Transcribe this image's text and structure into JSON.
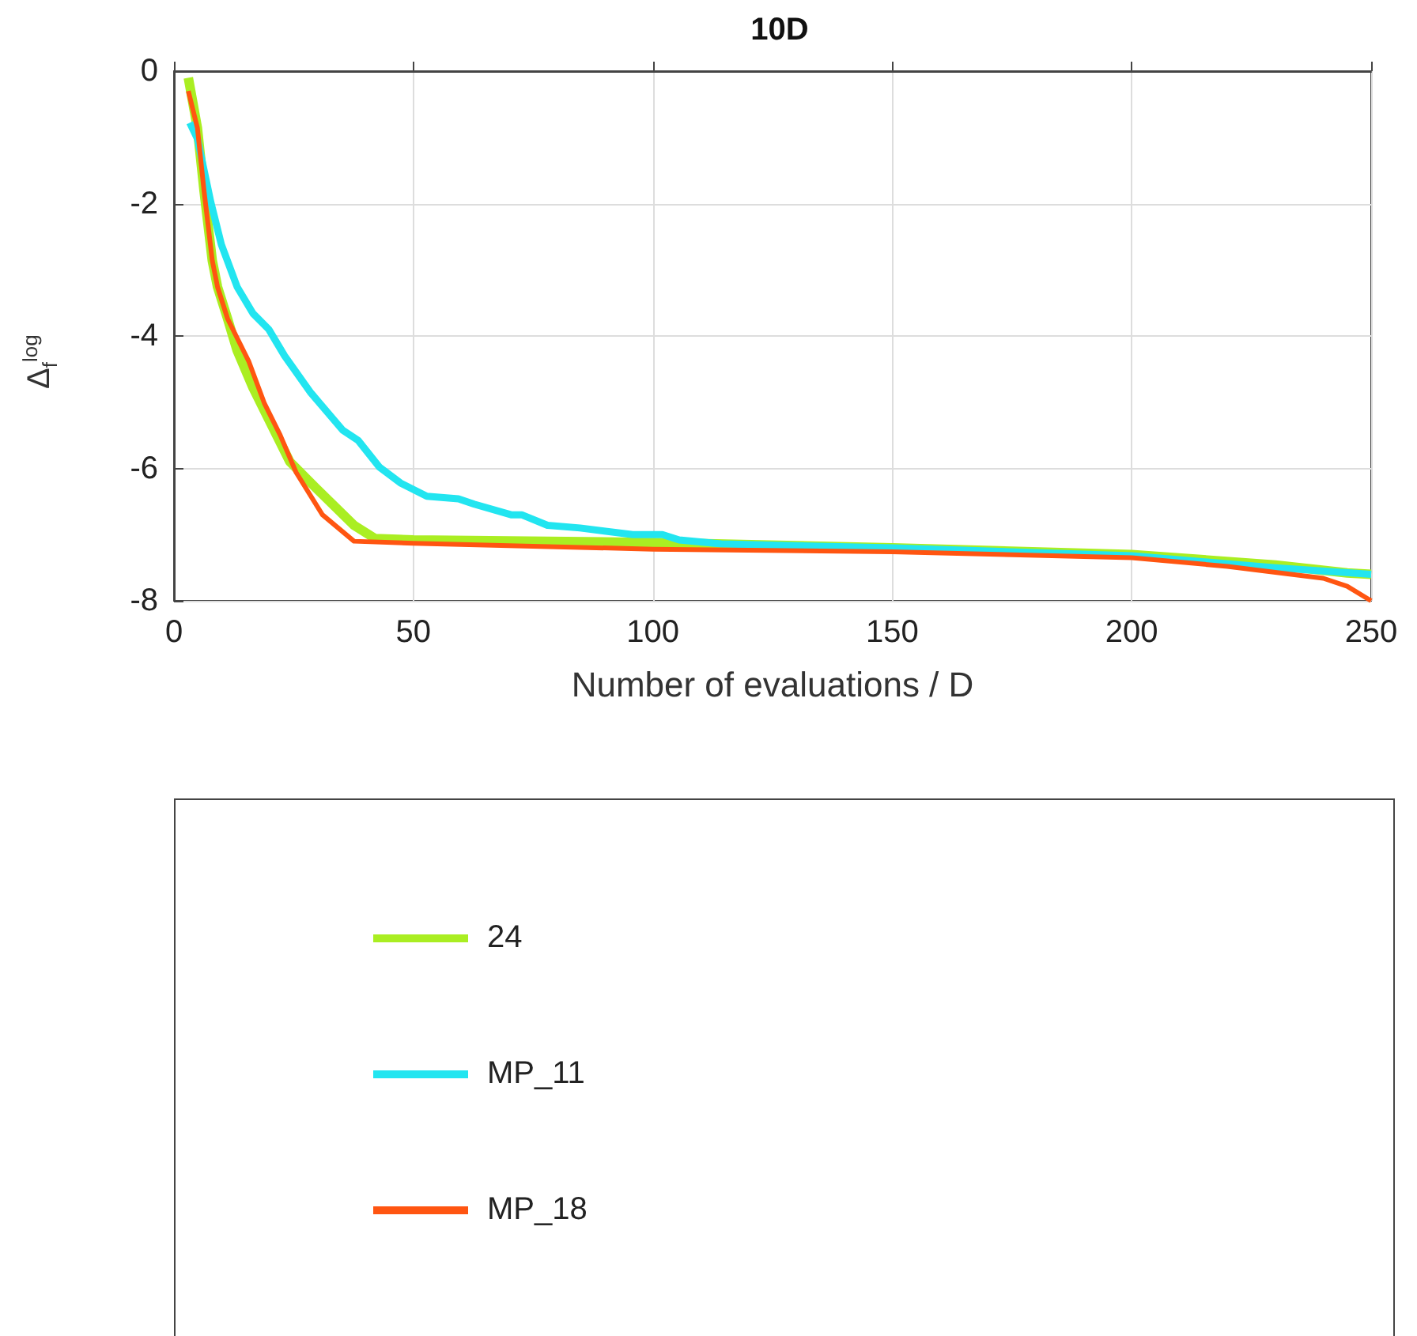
{
  "chart_data": {
    "type": "line",
    "title": "10D",
    "xlabel": "Number of evaluations / D",
    "ylabel": "Δ$_{f}$$^{log}$",
    "xlim": [
      0,
      250
    ],
    "xticks": [
      0,
      50,
      100,
      150,
      200,
      250
    ],
    "ylim": [
      -8,
      0
    ],
    "yticks": [
      -8,
      -6,
      -4,
      -2,
      0
    ],
    "grid": true,
    "legend": "bottom",
    "marker": "none",
    "line_style": "solid",
    "series": [
      {
        "name": "24",
        "color": "#aaee22",
        "x": [
          3,
          4.9,
          6.3,
          8,
          9.1,
          11.2,
          13.2,
          16.5,
          19.8,
          24.2,
          29.7,
          37.6,
          42,
          50,
          100,
          150,
          200,
          230,
          245,
          250
        ],
        "values": [
          -0.1,
          -0.86,
          -1.82,
          -2.86,
          -3.26,
          -3.74,
          -4.22,
          -4.78,
          -5.26,
          -5.9,
          -6.3,
          -6.86,
          -7.06,
          -7.08,
          -7.12,
          -7.2,
          -7.3,
          -7.46,
          -7.58,
          -7.6
        ]
      },
      {
        "name": "MP_11",
        "color": "#22e5f0",
        "x": [
          3.3,
          4.9,
          7.7,
          9.9,
          13.2,
          16.5,
          19.8,
          23.1,
          28.6,
          35.2,
          38.5,
          42.9,
          47.3,
          52.8,
          59.4,
          62.7,
          70.4,
          72.6,
          78,
          84.8,
          95.8,
          102,
          105.5,
          114.3,
          150,
          200,
          230,
          250
        ],
        "values": [
          -0.78,
          -1.02,
          -1.98,
          -2.62,
          -3.26,
          -3.66,
          -3.9,
          -4.3,
          -4.86,
          -5.42,
          -5.58,
          -5.98,
          -6.22,
          -6.42,
          -6.46,
          -6.54,
          -6.7,
          -6.7,
          -6.86,
          -6.9,
          -7.0,
          -7.0,
          -7.08,
          -7.14,
          -7.2,
          -7.32,
          -7.5,
          -7.6
        ]
      },
      {
        "name": "MP_18",
        "color": "#ff5511",
        "x": [
          3,
          4.9,
          6.3,
          8,
          9.1,
          11.2,
          15.6,
          18.9,
          22.2,
          25.5,
          31,
          37.6,
          50,
          100,
          150,
          200,
          220,
          240,
          245,
          250
        ],
        "values": [
          -0.3,
          -0.86,
          -1.82,
          -2.86,
          -3.26,
          -3.74,
          -4.38,
          -5.02,
          -5.5,
          -6.06,
          -6.7,
          -7.1,
          -7.13,
          -7.22,
          -7.26,
          -7.35,
          -7.48,
          -7.66,
          -7.78,
          -8.0
        ]
      }
    ]
  }
}
